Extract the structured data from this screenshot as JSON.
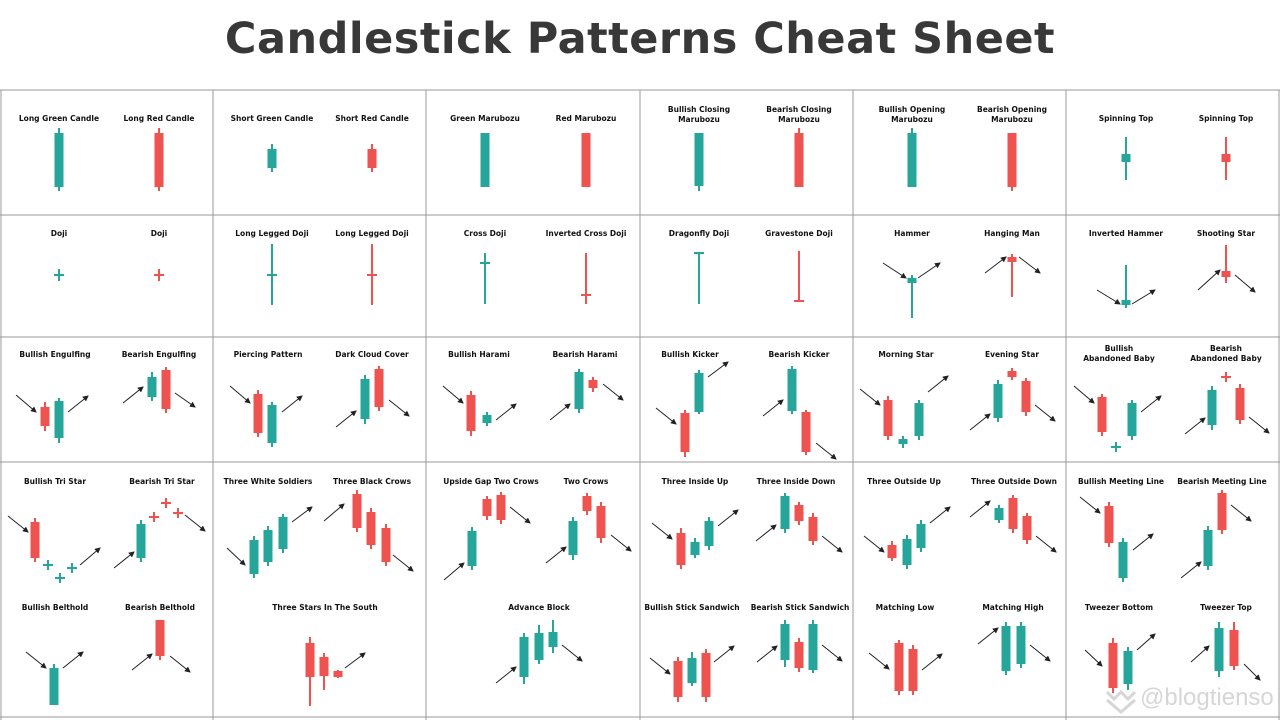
{
  "title": "Candlestick Patterns Cheat Sheet",
  "colors": {
    "bullish": "#26a69a",
    "bearish": "#ef5350",
    "grid": "#9a9a9a",
    "title": "#383838"
  },
  "watermark": "@blogtienso",
  "patterns": [
    {
      "label": "Long Green Candle"
    },
    {
      "label": "Long Red Candle"
    },
    {
      "label": "Short Green Candle"
    },
    {
      "label": "Short Red Candle"
    },
    {
      "label": "Green Marubozu"
    },
    {
      "label": "Red Marubozu"
    },
    {
      "label": "Bullish Closing\nMarubozu"
    },
    {
      "label": "Bearish Closing\nMarubozu"
    },
    {
      "label": "Bullish Opening\nMarubozu"
    },
    {
      "label": "Bearish Opening\nMarubozu"
    },
    {
      "label": "Spinning Top"
    },
    {
      "label": "Spinning Top"
    },
    {
      "label": "Doji"
    },
    {
      "label": "Doji"
    },
    {
      "label": "Long Legged Doji"
    },
    {
      "label": "Long Legged Doji"
    },
    {
      "label": "Cross Doji"
    },
    {
      "label": "Inverted Cross Doji"
    },
    {
      "label": "Dragonfly Doji"
    },
    {
      "label": "Gravestone Doji"
    },
    {
      "label": "Hammer"
    },
    {
      "label": "Hanging Man"
    },
    {
      "label": "Inverted Hammer"
    },
    {
      "label": "Shooting Star"
    },
    {
      "label": "Bullish Engulfing"
    },
    {
      "label": "Bearish Engulfing"
    },
    {
      "label": "Piercing Pattern"
    },
    {
      "label": "Dark Cloud Cover"
    },
    {
      "label": "Bullish Harami"
    },
    {
      "label": "Bearish Harami"
    },
    {
      "label": "Bullish Kicker"
    },
    {
      "label": "Bearish Kicker"
    },
    {
      "label": "Morning Star"
    },
    {
      "label": "Evening Star"
    },
    {
      "label": "Bullish\nAbandoned Baby"
    },
    {
      "label": "Bearish\nAbandoned Baby"
    },
    {
      "label": "Bullish Tri Star"
    },
    {
      "label": "Bearish Tri Star"
    },
    {
      "label": "Three White Soldiers"
    },
    {
      "label": "Three Black Crows"
    },
    {
      "label": "Upside Gap Two Crows"
    },
    {
      "label": "Two Crows"
    },
    {
      "label": "Three Inside Up"
    },
    {
      "label": "Three Inside Down"
    },
    {
      "label": "Three Outside Up"
    },
    {
      "label": "Three Outside Down"
    },
    {
      "label": "Bullish Meeting Line"
    },
    {
      "label": "Bearish Meeting Line"
    },
    {
      "label": "Bullish Belthold"
    },
    {
      "label": "Bearish Belthold"
    },
    {
      "label": "Three Stars In The South"
    },
    {
      "label": "Advance Block"
    },
    {
      "label": "Bullish Stick Sandwich"
    },
    {
      "label": "Bearish Stick Sandwich"
    },
    {
      "label": "Matching Low"
    },
    {
      "label": "Matching High"
    },
    {
      "label": "Tweezer Bottom"
    },
    {
      "label": "Tweezer Top"
    }
  ]
}
